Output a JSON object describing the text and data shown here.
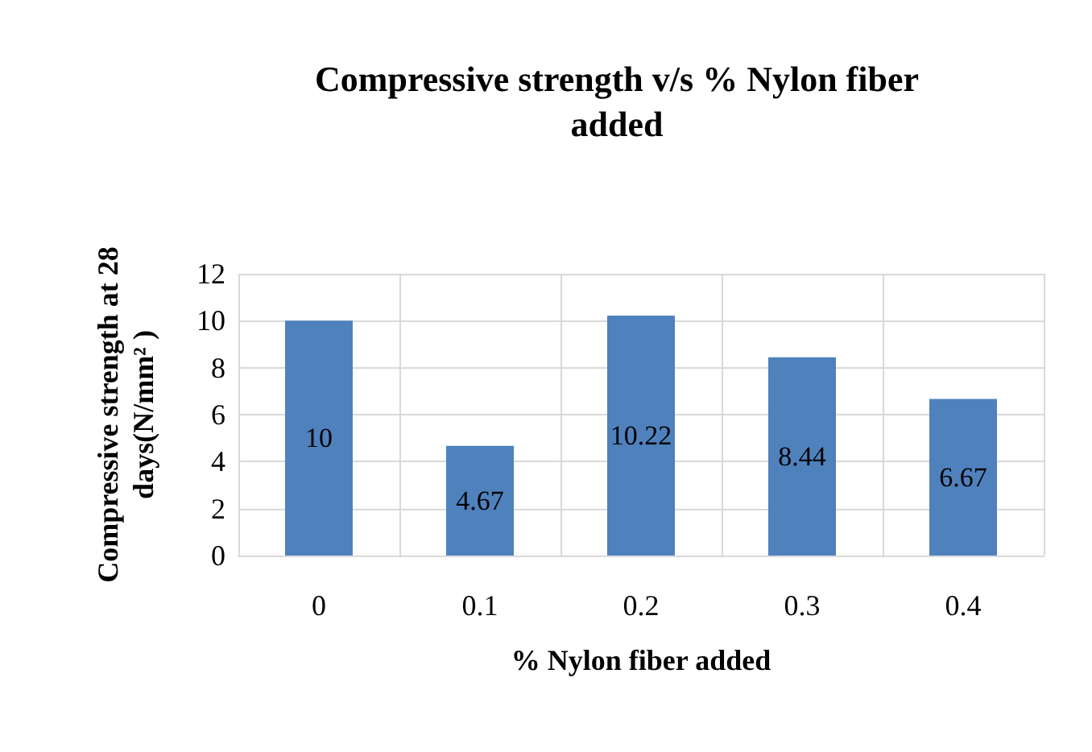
{
  "chart_data": {
    "type": "bar",
    "title": "Compressive strength v/s % Nylon fiber added",
    "xlabel": "% Nylon fiber added",
    "ylabel": "Compressive strength at 28 days(N/mm² )",
    "categories": [
      "0",
      "0.1",
      "0.2",
      "0.3",
      "0.4"
    ],
    "values": [
      10,
      4.67,
      10.22,
      8.44,
      6.67
    ],
    "color": "#4f81bd",
    "ylim": [
      0,
      12
    ],
    "yticks": [
      0,
      2,
      4,
      6,
      8,
      10,
      12
    ],
    "grid": true,
    "data_labels": true
  }
}
